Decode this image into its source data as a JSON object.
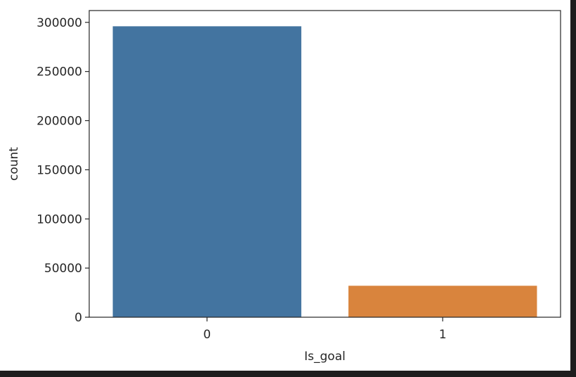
{
  "chart_data": {
    "type": "bar",
    "title": "",
    "xlabel": "Is_goal",
    "ylabel": "count",
    "categories": [
      "0",
      "1"
    ],
    "values": [
      296000,
      32000
    ],
    "ylim": [
      0,
      312000
    ],
    "yticks": [
      0,
      50000,
      100000,
      150000,
      200000,
      250000,
      300000
    ],
    "ytick_labels": [
      "0",
      "50000",
      "100000",
      "150000",
      "200000",
      "250000",
      "300000"
    ],
    "colors": [
      "#4374a0",
      "#d9843d"
    ],
    "grid": false,
    "legend": "none"
  }
}
